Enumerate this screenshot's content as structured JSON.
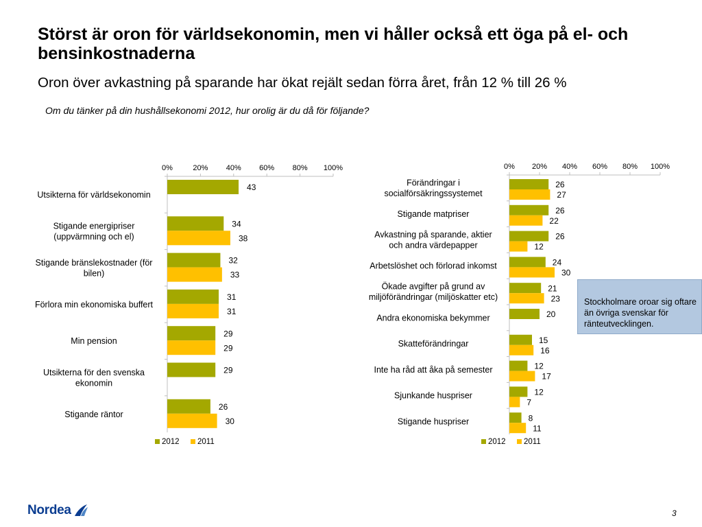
{
  "slide": {
    "title": "Störst är oron för världsekonomin, men vi håller också ett öga på el- och bensinkostnaderna",
    "subtitle": "Oron över avkastning på sparande har ökat rejält sedan förra året, från 12 % till 26 %",
    "question": "Om du tänker på din hushållsekonomi 2012, hur orolig är du då för följande?",
    "note": "Stockholmare oroar sig oftare än övriga svenskar för ränteutvecklingen.",
    "logo_text": "Nordea",
    "page_number": "3"
  },
  "colors": {
    "series_2012": "#a4a800",
    "series_2011": "#ffc000",
    "axis": "#bfbfbf",
    "note_bg": "#b3c8e0"
  },
  "chart_data": [
    {
      "type": "bar",
      "orientation": "horizontal",
      "categories": [
        "Utsikterna för världsekonomin",
        "Stigande energipriser (uppvärmning och el)",
        "Stigande bränslekostnader (för bilen)",
        "Förlora min ekonomiska buffert",
        "Min pension",
        "Utsikterna för den svenska ekonomin",
        "Stigande räntor"
      ],
      "series": [
        {
          "name": "2012",
          "values": [
            43,
            34,
            32,
            31,
            29,
            29,
            26
          ]
        },
        {
          "name": "2011",
          "values": [
            null,
            38,
            33,
            31,
            29,
            null,
            30
          ]
        }
      ],
      "xlim": [
        0,
        100
      ],
      "xticks": [
        "0%",
        "20%",
        "40%",
        "60%",
        "80%",
        "100%"
      ],
      "xaxis_position": "top",
      "legend": "bottom"
    },
    {
      "type": "bar",
      "orientation": "horizontal",
      "categories": [
        "Förändringar i socialförsäkringssystemet",
        "Stigande matpriser",
        "Avkastning på sparande, aktier och andra värdepapper",
        "Arbetslöshet och förlorad inkomst",
        "Ökade avgifter på grund av miljöförändringar (miljöskatter etc)",
        "Andra ekonomiska bekymmer",
        "Skatteförändringar",
        "Inte ha råd att åka på semester",
        "Sjunkande huspriser",
        "Stigande huspriser"
      ],
      "series": [
        {
          "name": "2012",
          "values": [
            26,
            26,
            26,
            24,
            21,
            20,
            15,
            12,
            12,
            8
          ]
        },
        {
          "name": "2011",
          "values": [
            27,
            22,
            12,
            30,
            23,
            null,
            16,
            17,
            7,
            11
          ]
        }
      ],
      "xlim": [
        0,
        100
      ],
      "xticks": [
        "0%",
        "20%",
        "40%",
        "60%",
        "80%",
        "100%"
      ],
      "xaxis_position": "top",
      "legend": "bottom"
    }
  ]
}
